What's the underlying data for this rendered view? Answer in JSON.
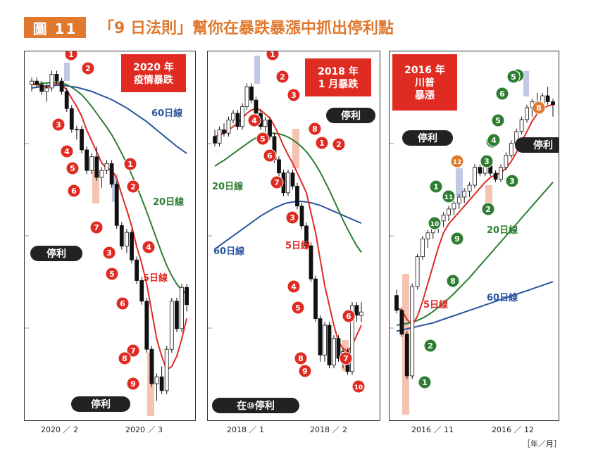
{
  "header": {
    "badge": "圖 11",
    "title": "「9 日法則」幫你在暴跌暴漲中抓出停利點"
  },
  "colors": {
    "orange": "#e0782e",
    "red": "#e02b23",
    "green": "#2e7d32",
    "blue": "#2a55a0",
    "dark": "#222222",
    "highlight_pink": "#f3b9a3",
    "highlight_blue": "#b6bfe0"
  },
  "chart_data": [
    {
      "type": "candlestick",
      "title": "2020 年\n疫情暴跌",
      "x_tick_labels": [
        "2020 ／ 2",
        "2020 ／ 3"
      ],
      "line_labels": {
        "ma5": "5日線",
        "ma20": "20日線",
        "ma60": "60日線"
      },
      "annotations": [
        "停利",
        "停利"
      ],
      "count_labels_red": [
        "1",
        "2",
        "3",
        "4",
        "5",
        "6",
        "7",
        "1",
        "2",
        "3",
        "4",
        "5",
        "6",
        "7",
        "8",
        "9"
      ],
      "count_labels_green": [],
      "candles": [
        [
          100,
          101,
          99,
          100.5
        ],
        [
          100.5,
          101,
          99.5,
          100
        ],
        [
          100,
          100.5,
          98.5,
          99
        ],
        [
          99,
          100,
          97.5,
          99.5
        ],
        [
          99.5,
          102,
          99,
          101.5
        ],
        [
          101.5,
          102,
          100,
          100.5
        ],
        [
          100.5,
          101,
          98.5,
          99
        ],
        [
          99,
          99.5,
          96,
          96.5
        ],
        [
          96.5,
          97,
          93,
          93.5
        ],
        [
          93.5,
          94,
          92,
          93.5
        ],
        [
          93.5,
          94,
          90,
          90.5
        ],
        [
          90.5,
          91,
          87,
          87.5
        ],
        [
          87.5,
          90,
          87,
          89.5
        ],
        [
          89.5,
          91,
          86,
          86.5
        ],
        [
          86.5,
          88,
          85,
          87.5
        ],
        [
          87.5,
          89,
          87,
          88.5
        ],
        [
          88.5,
          89,
          85,
          85.5
        ],
        [
          85.5,
          86,
          79,
          79.5
        ],
        [
          79.5,
          80,
          76,
          76.5
        ],
        [
          76.5,
          79,
          75.5,
          78.5
        ],
        [
          78.5,
          79,
          74,
          74.5
        ],
        [
          74.5,
          75,
          71,
          71.5
        ],
        [
          71.5,
          72,
          68,
          68.5
        ],
        [
          68.5,
          69,
          61,
          61.5
        ],
        [
          61.5,
          62,
          56,
          56.5
        ],
        [
          56.5,
          58,
          54,
          57.5
        ],
        [
          57.5,
          59,
          55,
          55.5
        ],
        [
          55.5,
          62,
          55,
          61.5
        ],
        [
          61.5,
          69,
          61,
          68.5
        ],
        [
          68.5,
          69,
          64,
          64.5
        ],
        [
          64.5,
          71,
          64,
          70.5
        ],
        [
          70.5,
          71,
          67,
          68
        ]
      ],
      "ma5": [
        100,
        100,
        99.8,
        99.6,
        99.8,
        100.2,
        100,
        99.2,
        98,
        96.8,
        95.4,
        93.4,
        91.8,
        90.2,
        88.6,
        87.8,
        87.6,
        86.4,
        84,
        81.8,
        79.4,
        76.4,
        74,
        71,
        67,
        63,
        60.5,
        58.5,
        59,
        60.5,
        63,
        66
      ],
      "ma20": [
        100,
        100.1,
        100.2,
        100.2,
        100.3,
        100.3,
        100.2,
        100,
        99.6,
        99.1,
        98.5,
        97.7,
        96.8,
        95.8,
        94.8,
        93.8,
        92.7,
        91.4,
        90,
        88.5,
        86.9,
        85.2,
        83.4,
        81.5,
        79.5,
        77.5,
        75.5,
        73.7,
        72.2,
        71,
        70.1,
        69.5
      ],
      "ma60": [
        99.5,
        99.6,
        99.7,
        99.8,
        99.8,
        99.9,
        99.9,
        99.8,
        99.7,
        99.6,
        99.4,
        99.2,
        99,
        98.7,
        98.4,
        98.1,
        97.8,
        97.4,
        97,
        96.6,
        96.1,
        95.6,
        95.1,
        94.6,
        94,
        93.4,
        92.8,
        92.2,
        91.6,
        91,
        90.5,
        90
      ]
    },
    {
      "type": "candlestick",
      "title": "2018 年\n1 月暴跌",
      "x_tick_labels": [
        "2018 ／ 1",
        "2018 ／ 2"
      ],
      "line_labels": {
        "ma5": "5日線",
        "ma20": "20日線",
        "ma60": "60日線"
      },
      "annotations": [
        "停利",
        "在⑩停利"
      ],
      "count_labels_red": [
        "1",
        "2",
        "3",
        "4",
        "5",
        "6",
        "7",
        "8",
        "1",
        "2",
        "3",
        "4",
        "5",
        "6",
        "7",
        "8",
        "9",
        "10"
      ],
      "count_labels_green": [],
      "candles": [
        [
          100,
          101,
          98.5,
          99
        ],
        [
          99,
          101.5,
          98.5,
          101
        ],
        [
          101,
          102,
          100,
          100.5
        ],
        [
          100.5,
          103,
          100,
          102.5
        ],
        [
          102.5,
          104,
          102,
          103.5
        ],
        [
          103.5,
          104,
          101,
          101.5
        ],
        [
          101.5,
          105,
          101,
          104.5
        ],
        [
          104.5,
          108,
          104,
          107.5
        ],
        [
          107.5,
          108,
          105,
          105.5
        ],
        [
          105.5,
          106,
          103,
          103.5
        ],
        [
          103.5,
          104,
          101,
          101.5
        ],
        [
          101.5,
          103,
          100,
          102.5
        ],
        [
          102.5,
          103,
          99.5,
          100
        ],
        [
          100,
          100.5,
          96,
          96.5
        ],
        [
          96.5,
          97,
          94,
          94.5
        ],
        [
          94.5,
          95,
          91,
          91.5
        ],
        [
          91.5,
          95,
          91,
          94.5
        ],
        [
          94.5,
          95,
          92,
          92.5
        ],
        [
          92.5,
          93,
          89,
          89.5
        ],
        [
          89.5,
          90,
          86,
          86.5
        ],
        [
          86.5,
          87,
          83,
          83.5
        ],
        [
          83.5,
          84,
          78,
          78.5
        ],
        [
          78.5,
          79,
          72,
          72.5
        ],
        [
          72.5,
          73,
          66,
          67
        ],
        [
          67,
          72,
          66,
          71.5
        ],
        [
          71.5,
          72,
          65,
          65.5
        ],
        [
          65.5,
          70,
          65,
          69.5
        ],
        [
          69.5,
          70,
          66,
          66.5
        ],
        [
          66.5,
          68,
          65,
          67.5
        ],
        [
          67.5,
          68,
          64,
          64.5
        ],
        [
          64.5,
          75,
          64,
          74.5
        ],
        [
          74.5,
          75,
          72,
          73
        ],
        [
          73,
          75,
          72,
          73.5
        ]
      ],
      "ma5": [
        100,
        100.2,
        100.5,
        101,
        101.5,
        102,
        102.8,
        103.5,
        104,
        104.2,
        104,
        103.4,
        102.8,
        101.6,
        100.2,
        98.6,
        97.2,
        96,
        94.5,
        93,
        91.5,
        88.5,
        85.5,
        81.5,
        77.5,
        74.5,
        71.5,
        69,
        68,
        67.5,
        68.5,
        70,
        71.5
      ],
      "ma20": [
        95.5,
        96,
        96.4,
        96.9,
        97.4,
        97.9,
        98.4,
        98.9,
        99.4,
        99.8,
        100.1,
        100.3,
        100.5,
        100.5,
        100.4,
        100.2,
        99.9,
        99.5,
        99,
        98.4,
        97.7,
        96.8,
        95.8,
        94.6,
        93.3,
        91.9,
        90.4,
        88.9,
        87.4,
        86,
        84.7,
        83.5,
        82.5
      ],
      "ma60": [
        83,
        83.5,
        84,
        84.5,
        85,
        85.5,
        86,
        86.5,
        87,
        87.5,
        88,
        88.4,
        88.8,
        89.2,
        89.5,
        89.8,
        90,
        90.1,
        90.2,
        90.2,
        90.1,
        90,
        89.8,
        89.6,
        89.3,
        89,
        88.7,
        88.4,
        88.1,
        87.8,
        87.5,
        87.2,
        86.9
      ]
    },
    {
      "type": "candlestick",
      "title": "2016 年\n川普\n暴漲",
      "x_tick_labels": [
        "2016 ／ 11",
        "2016 ／ 12"
      ],
      "line_labels": {
        "ma5": "5日線",
        "ma20": "20日線",
        "ma60": "60日線"
      },
      "annotations": [
        "停利",
        "停利"
      ],
      "count_labels_red": [],
      "count_labels_green": [
        "1",
        "2",
        "3",
        "4",
        "5",
        "6",
        "7",
        "8",
        "9",
        "10",
        "11",
        "1",
        "2",
        "3",
        "4",
        "5",
        "6",
        "7"
      ],
      "count_labels_orange": [
        "12",
        "8"
      ],
      "candles": [
        [
          78,
          79,
          75,
          75.5
        ],
        [
          75.5,
          76,
          71,
          71.5
        ],
        [
          71.5,
          72,
          64,
          64.5
        ],
        [
          64.5,
          80,
          64,
          79.5
        ],
        [
          79.5,
          85,
          79,
          84.5
        ],
        [
          84.5,
          88,
          84,
          87.5
        ],
        [
          87.5,
          89,
          86,
          88.5
        ],
        [
          88.5,
          90,
          87.5,
          89.5
        ],
        [
          89.5,
          91,
          88.5,
          90.5
        ],
        [
          90.5,
          92,
          89.5,
          91.5
        ],
        [
          91.5,
          93,
          90.5,
          92.5
        ],
        [
          92.5,
          94,
          91.5,
          93.5
        ],
        [
          93.5,
          95,
          92.5,
          94.5
        ],
        [
          94.5,
          96,
          93.5,
          95.5
        ],
        [
          95.5,
          97,
          94.5,
          96.5
        ],
        [
          96.5,
          100,
          96,
          99.5
        ],
        [
          99.5,
          100,
          98,
          98.5
        ],
        [
          98.5,
          101,
          98,
          100.5
        ],
        [
          100.5,
          101,
          98,
          98.5
        ],
        [
          98.5,
          99,
          97,
          97.5
        ],
        [
          97.5,
          100,
          97,
          99.5
        ],
        [
          99.5,
          102,
          99,
          101.5
        ],
        [
          101.5,
          104,
          101,
          103.5
        ],
        [
          103.5,
          106,
          103,
          105.5
        ],
        [
          105.5,
          108,
          105,
          107.5
        ],
        [
          107.5,
          110,
          107,
          109.5
        ],
        [
          109.5,
          111,
          108,
          110.5
        ],
        [
          110.5,
          112,
          109,
          109
        ],
        [
          109,
          112,
          108.5,
          111.5
        ],
        [
          111.5,
          113,
          110,
          110.5
        ],
        [
          110.5,
          111,
          108,
          110
        ]
      ],
      "ma5": [
        76,
        75.5,
        74,
        73,
        74.5,
        77,
        80,
        83,
        86,
        88.5,
        90,
        91,
        92,
        93,
        94,
        95,
        96,
        97,
        97.8,
        98.2,
        98.6,
        99.3,
        100.5,
        102,
        103.8,
        105.5,
        107.2,
        108.5,
        109.3,
        109.8,
        110
      ],
      "ma20": [
        73,
        73.2,
        73.3,
        73.5,
        73.8,
        74.2,
        74.7,
        75.3,
        76,
        76.7,
        77.5,
        78.3,
        79.2,
        80.1,
        81,
        82,
        83,
        84,
        85,
        86,
        87,
        88,
        89,
        90,
        91,
        92,
        93,
        94,
        95,
        96,
        97
      ],
      "ma60": [
        72,
        72.2,
        72.4,
        72.6,
        72.8,
        73,
        73.2,
        73.4,
        73.7,
        74,
        74.3,
        74.6,
        74.9,
        75.2,
        75.5,
        75.8,
        76.1,
        76.4,
        76.7,
        77,
        77.3,
        77.6,
        77.9,
        78.2,
        78.5,
        78.8,
        79.1,
        79.4,
        79.7,
        80,
        80.3
      ]
    }
  ],
  "unit_label": "［年／月］"
}
